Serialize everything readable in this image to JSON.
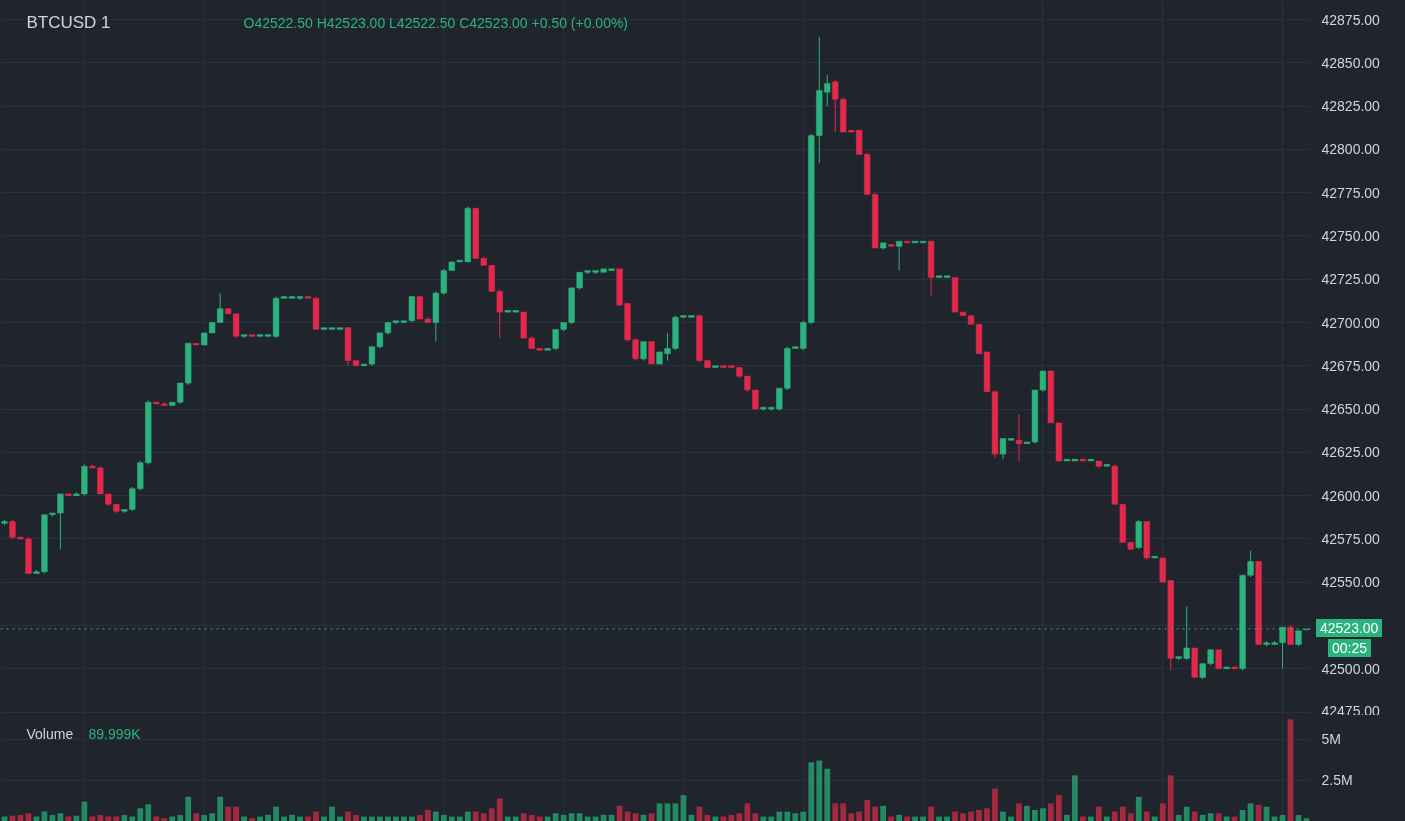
{
  "chart_data": [
    {
      "type": "candlestick",
      "title": "BTCUSD  1",
      "annotations": [
        "O42522.50 H42523.00 L42522.50 C42523.00 +0.50 (+0.00%)",
        "00:25"
      ],
      "categories": [
        null,
        null,
        null,
        null,
        null,
        null,
        null,
        null,
        null,
        null,
        null,
        null,
        null,
        null,
        null,
        null,
        null,
        null,
        null,
        null,
        null,
        null,
        null,
        null,
        null,
        null,
        null,
        null,
        null,
        null,
        null,
        null,
        null,
        null,
        null,
        null,
        null,
        null,
        null,
        null,
        null,
        null,
        null,
        null,
        null,
        null,
        null,
        null,
        null,
        null,
        null,
        null,
        null,
        null,
        null,
        null,
        null,
        null,
        null,
        null,
        null,
        null,
        null,
        null,
        null,
        null,
        null,
        null,
        null,
        null,
        null,
        null,
        null,
        null,
        null,
        null,
        null,
        null,
        null,
        null,
        null,
        null,
        null,
        null,
        null,
        null,
        null,
        null,
        null,
        null,
        null,
        null,
        null,
        null,
        null,
        null,
        null,
        null,
        null,
        null,
        null,
        null,
        null,
        null,
        null,
        null,
        null,
        null,
        null,
        null,
        null,
        null,
        null,
        null,
        null,
        null,
        null,
        null,
        null,
        null,
        null,
        null,
        null,
        null,
        null,
        null,
        null,
        null,
        null,
        null,
        null,
        null,
        null,
        null,
        null,
        null,
        null,
        null,
        null,
        null,
        null,
        null,
        null,
        null,
        null,
        null,
        null,
        null,
        null,
        null,
        null,
        null,
        null,
        null,
        null,
        null,
        null,
        null,
        null,
        null,
        null,
        null,
        null,
        null
      ],
      "ohlc": [
        [
          42584,
          42586,
          42583,
          42585
        ],
        [
          42585,
          42586,
          42575,
          42576
        ],
        [
          42576,
          42576,
          42575,
          42575
        ],
        [
          42575,
          42576,
          42555,
          42555
        ],
        [
          42555,
          42557,
          42555,
          42556
        ],
        [
          42556,
          42589,
          42555,
          42589
        ],
        [
          42589,
          42590,
          42588,
          42590
        ],
        [
          42590,
          42601,
          42569,
          42601
        ],
        [
          42601,
          42601,
          42600,
          42600
        ],
        [
          42600,
          42602,
          42600,
          42601
        ],
        [
          42601,
          42618,
          42600,
          42617
        ],
        [
          42617,
          42618,
          42616,
          42616
        ],
        [
          42616,
          42617,
          42601,
          42601
        ],
        [
          42601,
          42601,
          42594,
          42595
        ],
        [
          42595,
          42595,
          42590,
          42591
        ],
        [
          42591,
          42592,
          42590,
          42592
        ],
        [
          42592,
          42605,
          42591,
          42604
        ],
        [
          42604,
          42620,
          42603,
          42619
        ],
        [
          42619,
          42655,
          42618,
          42654
        ],
        [
          42654,
          42654,
          42653,
          42653
        ],
        [
          42653,
          42654,
          42652,
          42652
        ],
        [
          42652,
          42654,
          42652,
          42654
        ],
        [
          42654,
          42665,
          42653,
          42665
        ],
        [
          42665,
          42688,
          42664,
          42688
        ],
        [
          42688,
          42688,
          42687,
          42687
        ],
        [
          42687,
          42694,
          42687,
          42694
        ],
        [
          42694,
          42700,
          42694,
          42700
        ],
        [
          42700,
          42717,
          42700,
          42708
        ],
        [
          42708,
          42708,
          42705,
          42705
        ],
        [
          42705,
          42705,
          42691,
          42692
        ],
        [
          42692,
          42693,
          42691,
          42693
        ],
        [
          42693,
          42693,
          42692,
          42692
        ],
        [
          42692,
          42693,
          42692,
          42693
        ],
        [
          42692,
          42693,
          42692,
          42693
        ],
        [
          42692,
          42715,
          42691,
          42714
        ],
        [
          42714,
          42715,
          42714,
          42715
        ],
        [
          42714,
          42715,
          42714,
          42715
        ],
        [
          42714,
          42715,
          42713,
          42715
        ],
        [
          42715,
          42715,
          42714,
          42714
        ],
        [
          42714,
          42715,
          42696,
          42696
        ],
        [
          42696,
          42697,
          42696,
          42697
        ],
        [
          42696,
          42697,
          42696,
          42697
        ],
        [
          42696,
          42697,
          42696,
          42697
        ],
        [
          42697,
          42697,
          42675,
          42678
        ],
        [
          42678,
          42678,
          42675,
          42675
        ],
        [
          42675,
          42676,
          42675,
          42676
        ],
        [
          42676,
          42686,
          42675,
          42686
        ],
        [
          42686,
          42694,
          42685,
          42694
        ],
        [
          42694,
          42700,
          42693,
          42700
        ],
        [
          42700,
          42701,
          42699,
          42701
        ],
        [
          42700,
          42701,
          42700,
          42701
        ],
        [
          42701,
          42715,
          42700,
          42715
        ],
        [
          42715,
          42715,
          42702,
          42702
        ],
        [
          42702,
          42703,
          42700,
          42700
        ],
        [
          42700,
          42718,
          42689,
          42717
        ],
        [
          42717,
          42731,
          42716,
          42730
        ],
        [
          42730,
          42735,
          42730,
          42735
        ],
        [
          42735,
          42736,
          42735,
          42736
        ],
        [
          42735,
          42767,
          42735,
          42766
        ],
        [
          42766,
          42766,
          42737,
          42737
        ],
        [
          42737,
          42738,
          42733,
          42733
        ],
        [
          42733,
          42733,
          42718,
          42718
        ],
        [
          42718,
          42719,
          42691,
          42706
        ],
        [
          42706,
          42707,
          42706,
          42707
        ],
        [
          42706,
          42707,
          42706,
          42707
        ],
        [
          42706,
          42706,
          42691,
          42691
        ],
        [
          42691,
          42692,
          42685,
          42685
        ],
        [
          42685,
          42685,
          42684,
          42684
        ],
        [
          42684,
          42685,
          42684,
          42685
        ],
        [
          42685,
          42696,
          42684,
          42696
        ],
        [
          42696,
          42700,
          42695,
          42700
        ],
        [
          42700,
          42720,
          42699,
          42720
        ],
        [
          42720,
          42729,
          42719,
          42729
        ],
        [
          42729,
          42730,
          42728,
          42730
        ],
        [
          42729,
          42730,
          42728,
          42730
        ],
        [
          42729,
          42731,
          42729,
          42731
        ],
        [
          42730,
          42731,
          42730,
          42731
        ],
        [
          42731,
          42731,
          42710,
          42710
        ],
        [
          42711,
          42711,
          42689,
          42690
        ],
        [
          42690,
          42691,
          42678,
          42679
        ],
        [
          42679,
          42689,
          42678,
          42689
        ],
        [
          42689,
          42689,
          42676,
          42676
        ],
        [
          42676,
          42683,
          42676,
          42683
        ],
        [
          42682,
          42694,
          42678,
          42685
        ],
        [
          42685,
          42704,
          42684,
          42703
        ],
        [
          42703,
          42704,
          42703,
          42704
        ],
        [
          42703,
          42704,
          42703,
          42704
        ],
        [
          42704,
          42704,
          42677,
          42678
        ],
        [
          42678,
          42678,
          42674,
          42674
        ],
        [
          42674,
          42675,
          42674,
          42675
        ],
        [
          42675,
          42675,
          42674,
          42674
        ],
        [
          42675,
          42675,
          42674,
          42674
        ],
        [
          42674,
          42674,
          42668,
          42669
        ],
        [
          42669,
          42669,
          42660,
          42661
        ],
        [
          42661,
          42661,
          42650,
          42650
        ],
        [
          42650,
          42651,
          42649,
          42651
        ],
        [
          42650,
          42651,
          42649,
          42651
        ],
        [
          42650,
          42662,
          42649,
          42662
        ],
        [
          42662,
          42686,
          42661,
          42685
        ],
        [
          42685,
          42686,
          42685,
          42686
        ],
        [
          42685,
          42701,
          42684,
          42700
        ],
        [
          42700,
          42809,
          42699,
          42808
        ],
        [
          42808,
          42865,
          42792,
          42834
        ],
        [
          42833,
          42843,
          42825,
          42838
        ],
        [
          42839,
          42840,
          42810,
          42829
        ],
        [
          42829,
          42830,
          42810,
          42810
        ],
        [
          42811,
          42811,
          42810,
          42810
        ],
        [
          42811,
          42811,
          42797,
          42797
        ],
        [
          42797,
          42798,
          42774,
          42774
        ],
        [
          42774,
          42775,
          42743,
          42743
        ],
        [
          42743,
          42746,
          42742,
          42746
        ],
        [
          42745,
          42745,
          42744,
          42744
        ],
        [
          42744,
          42747,
          42730,
          42747
        ],
        [
          42747,
          42747,
          42746,
          42746
        ],
        [
          42746,
          42747,
          42746,
          42747
        ],
        [
          42746,
          42747,
          42746,
          42747
        ],
        [
          42747,
          42747,
          42715,
          42726
        ],
        [
          42726,
          42727,
          42726,
          42727
        ],
        [
          42726,
          42727,
          42726,
          42727
        ],
        [
          42726,
          42726,
          42706,
          42706
        ],
        [
          42706,
          42706,
          42704,
          42704
        ],
        [
          42704,
          42704,
          42699,
          42699
        ],
        [
          42699,
          42699,
          42682,
          42682
        ],
        [
          42683,
          42683,
          42660,
          42660
        ],
        [
          42660,
          42661,
          42622,
          42624
        ],
        [
          42624,
          42633,
          42621,
          42633
        ],
        [
          42632,
          42633,
          42632,
          42633
        ],
        [
          42632,
          42647,
          42620,
          42630
        ],
        [
          42630,
          42631,
          42630,
          42631
        ],
        [
          42631,
          42661,
          42630,
          42661
        ],
        [
          42661,
          42672,
          42660,
          42672
        ],
        [
          42672,
          42672,
          42642,
          42642
        ],
        [
          42642,
          42642,
          42620,
          42620
        ],
        [
          42620,
          42621,
          42620,
          42621
        ],
        [
          42620,
          42621,
          42620,
          42621
        ],
        [
          42621,
          42621,
          42620,
          42620
        ],
        [
          42620,
          42621,
          42620,
          42621
        ],
        [
          42620,
          42620,
          42616,
          42617
        ],
        [
          42617,
          42618,
          42617,
          42618
        ],
        [
          42617,
          42618,
          42595,
          42595
        ],
        [
          42595,
          42595,
          42573,
          42573
        ],
        [
          42573,
          42573,
          42569,
          42569
        ],
        [
          42570,
          42586,
          42569,
          42585
        ],
        [
          42585,
          42585,
          42563,
          42564
        ],
        [
          42564,
          42565,
          42564,
          42565
        ],
        [
          42564,
          42564,
          42550,
          42550
        ],
        [
          42551,
          42551,
          42499,
          42506
        ],
        [
          42506,
          42507,
          42505,
          42507
        ],
        [
          42506,
          42536,
          42505,
          42512
        ],
        [
          42512,
          42512,
          42495,
          42495
        ],
        [
          42495,
          42503,
          42494,
          42503
        ],
        [
          42503,
          42511,
          42502,
          42511
        ],
        [
          42511,
          42511,
          42500,
          42500
        ],
        [
          42500,
          42501,
          42500,
          42501
        ],
        [
          42501,
          42501,
          42500,
          42500
        ],
        [
          42500,
          42554,
          42499,
          42554
        ],
        [
          42554,
          42568,
          42553,
          42562
        ],
        [
          42562,
          42562,
          42514,
          42514
        ],
        [
          42514,
          42516,
          42513,
          42515
        ],
        [
          42514,
          42516,
          42514,
          42515
        ],
        [
          42515,
          42524,
          42500,
          42524
        ],
        [
          42524,
          42525,
          42514,
          42514
        ],
        [
          42514,
          42522,
          42513,
          42522
        ],
        [
          42522.5,
          42523,
          42522.5,
          42523
        ]
      ],
      "colors": [
        "#2bb37d",
        "#e3294b",
        "#e3294b",
        "#e3294b",
        "#2bb37d",
        "#2bb37d",
        "#2bb37d",
        "#2bb37d",
        "#e3294b",
        "#2bb37d",
        "#2bb37d",
        "#e3294b",
        "#e3294b",
        "#e3294b",
        "#e3294b",
        "#2bb37d",
        "#2bb37d",
        "#2bb37d",
        "#2bb37d",
        "#e3294b",
        "#e3294b",
        "#2bb37d",
        "#2bb37d",
        "#2bb37d",
        "#e3294b",
        "#2bb37d",
        "#2bb37d",
        "#2bb37d",
        "#e3294b",
        "#e3294b",
        "#2bb37d",
        "#e3294b",
        "#2bb37d",
        "#2bb37d",
        "#2bb37d",
        "#2bb37d",
        "#2bb37d",
        "#2bb37d",
        "#e3294b",
        "#e3294b",
        "#2bb37d",
        "#2bb37d",
        "#2bb37d",
        "#e3294b",
        "#e3294b",
        "#2bb37d",
        "#2bb37d",
        "#2bb37d",
        "#2bb37d",
        "#2bb37d",
        "#2bb37d",
        "#2bb37d",
        "#e3294b",
        "#e3294b",
        "#2bb37d",
        "#2bb37d",
        "#2bb37d",
        "#2bb37d",
        "#2bb37d",
        "#e3294b",
        "#e3294b",
        "#e3294b",
        "#e3294b",
        "#2bb37d",
        "#2bb37d",
        "#e3294b",
        "#e3294b",
        "#e3294b",
        "#2bb37d",
        "#2bb37d",
        "#2bb37d",
        "#2bb37d",
        "#2bb37d",
        "#2bb37d",
        "#2bb37d",
        "#2bb37d",
        "#2bb37d",
        "#e3294b",
        "#e3294b",
        "#e3294b",
        "#2bb37d",
        "#e3294b",
        "#2bb37d",
        "#2bb37d",
        "#2bb37d",
        "#2bb37d",
        "#2bb37d",
        "#e3294b",
        "#e3294b",
        "#2bb37d",
        "#e3294b",
        "#e3294b",
        "#e3294b",
        "#e3294b",
        "#e3294b",
        "#2bb37d",
        "#2bb37d",
        "#2bb37d",
        "#2bb37d",
        "#2bb37d",
        "#2bb37d",
        "#2bb37d",
        "#2bb37d",
        "#2bb37d",
        "#e3294b",
        "#e3294b",
        "#e3294b",
        "#e3294b",
        "#e3294b",
        "#e3294b",
        "#2bb37d",
        "#e3294b",
        "#2bb37d",
        "#e3294b",
        "#2bb37d",
        "#2bb37d",
        "#e3294b",
        "#2bb37d",
        "#2bb37d",
        "#e3294b",
        "#e3294b",
        "#e3294b",
        "#e3294b",
        "#e3294b",
        "#e3294b",
        "#2bb37d",
        "#2bb37d",
        "#e3294b",
        "#2bb37d",
        "#2bb37d",
        "#2bb37d",
        "#e3294b",
        "#e3294b",
        "#2bb37d",
        "#2bb37d",
        "#e3294b",
        "#2bb37d",
        "#e3294b",
        "#2bb37d",
        "#e3294b",
        "#e3294b",
        "#e3294b",
        "#2bb37d",
        "#e3294b",
        "#2bb37d",
        "#e3294b",
        "#e3294b",
        "#2bb37d",
        "#2bb37d",
        "#e3294b",
        "#2bb37d",
        "#2bb37d",
        "#e3294b",
        "#2bb37d",
        "#e3294b",
        "#2bb37d",
        "#2bb37d",
        "#e3294b",
        "#2bb37d",
        "#2bb37d",
        "#2bb37d",
        "#e3294b",
        "#2bb37d",
        "#2bb37d"
      ],
      "ylim": [
        42473,
        42886
      ],
      "yticks": [
        {
          "value": 42475,
          "label": "42475.00"
        },
        {
          "value": 42500,
          "label": "42500.00"
        },
        {
          "value": 42525,
          "label": null
        },
        {
          "value": 42550,
          "label": "42550.00"
        },
        {
          "value": 42575,
          "label": "42575.00"
        },
        {
          "value": 42600,
          "label": "42600.00"
        },
        {
          "value": 42625,
          "label": "42625.00"
        },
        {
          "value": 42650,
          "label": "42650.00"
        },
        {
          "value": 42675,
          "label": "42675.00"
        },
        {
          "value": 42700,
          "label": "42700.00"
        },
        {
          "value": 42725,
          "label": "42725.00"
        },
        {
          "value": 42750,
          "label": "42750.00"
        },
        {
          "value": 42775,
          "label": "42775.00"
        },
        {
          "value": 42800,
          "label": "42800.00"
        },
        {
          "value": 42825,
          "label": "42825.00"
        },
        {
          "value": 42850,
          "label": "42850.00"
        },
        {
          "value": 42875,
          "label": "42875.00"
        }
      ],
      "ref_lines": [
        {
          "axis": "y",
          "value": 42523,
          "label": "42523.00",
          "color": "#2bb37d",
          "line_style": "dotted"
        }
      ],
      "grid": true,
      "tick_labels": "y"
    },
    {
      "type": "bar",
      "title": "Volume",
      "annotations": [
        "89.999K"
      ],
      "categories": [
        null,
        null,
        null,
        null,
        null,
        null,
        null,
        null,
        null,
        null,
        null,
        null,
        null,
        null,
        null,
        null,
        null,
        null,
        null,
        null,
        null,
        null,
        null,
        null,
        null,
        null,
        null,
        null,
        null,
        null,
        null,
        null,
        null,
        null,
        null,
        null,
        null,
        null,
        null,
        null,
        null,
        null,
        null,
        null,
        null,
        null,
        null,
        null,
        null,
        null,
        null,
        null,
        null,
        null,
        null,
        null,
        null,
        null,
        null,
        null,
        null,
        null,
        null,
        null,
        null,
        null,
        null,
        null,
        null,
        null,
        null,
        null,
        null,
        null,
        null,
        null,
        null,
        null,
        null,
        null,
        null,
        null,
        null,
        null,
        null,
        null,
        null,
        null,
        null,
        null,
        null,
        null,
        null,
        null,
        null,
        null,
        null,
        null,
        null,
        null,
        null,
        null,
        null,
        null,
        null,
        null,
        null,
        null,
        null,
        null,
        null,
        null,
        null,
        null,
        null,
        null,
        null,
        null,
        null,
        null,
        null,
        null,
        null,
        null,
        null,
        null,
        null,
        null,
        null,
        null,
        null,
        null,
        null,
        null,
        null,
        null,
        null,
        null,
        null,
        null,
        null,
        null,
        null,
        null,
        null,
        null,
        null,
        null,
        null,
        null,
        null,
        null,
        null,
        null,
        null,
        null,
        null,
        null,
        null,
        null,
        null,
        null,
        null,
        null
      ],
      "values": [
        0.3,
        0.35,
        0.4,
        0.5,
        0.3,
        0.6,
        0.4,
        0.5,
        0.3,
        0.35,
        1.2,
        0.3,
        0.4,
        0.3,
        0.3,
        0.4,
        0.3,
        0.8,
        1.05,
        0.3,
        0.2,
        0.3,
        0.4,
        1.5,
        0.5,
        0.4,
        0.5,
        1.5,
        0.9,
        0.9,
        0.3,
        0.2,
        0.3,
        0.4,
        0.9,
        0.3,
        0.4,
        0.3,
        0.3,
        0.6,
        0.3,
        0.9,
        0.3,
        0.6,
        0.4,
        0.3,
        0.3,
        0.3,
        0.3,
        0.3,
        0.3,
        0.3,
        0.4,
        0.7,
        0.6,
        0.4,
        0.3,
        0.3,
        0.6,
        0.6,
        0.5,
        0.8,
        1.4,
        0.3,
        0.3,
        0.5,
        0.4,
        0.3,
        0.3,
        0.5,
        0.4,
        0.5,
        0.5,
        0.3,
        0.3,
        0.4,
        0.4,
        0.95,
        0.6,
        0.5,
        0.4,
        0.5,
        1.1,
        1.1,
        1.1,
        1.6,
        0.4,
        0.9,
        0.4,
        0.3,
        0.3,
        0.4,
        0.5,
        1.1,
        0.5,
        0.3,
        0.3,
        0.6,
        0.6,
        0.5,
        0.6,
        3.6,
        3.7,
        3.2,
        1.1,
        1.1,
        0.5,
        0.6,
        1.3,
        0.9,
        0.95,
        0.3,
        0.4,
        0.3,
        0.3,
        0.3,
        0.9,
        0.3,
        0.3,
        0.6,
        0.5,
        0.6,
        0.7,
        0.8,
        2.0,
        0.6,
        0.3,
        1.1,
        0.95,
        0.7,
        0.8,
        1.1,
        1.6,
        0.4,
        2.8,
        0.3,
        0.3,
        0.9,
        0.3,
        0.6,
        0.9,
        0.5,
        1.5,
        0.6,
        0.3,
        1.1,
        2.8,
        0.4,
        0.9,
        0.6,
        0.4,
        0.5,
        0.5,
        0.3,
        0.3,
        0.7,
        1.1,
        1.0,
        0.9,
        0.3,
        0.4,
        6.2,
        0.4,
        0.2
      ],
      "colors": [
        "#238a63",
        "#a3293f",
        "#a3293f",
        "#a3293f",
        "#238a63",
        "#238a63",
        "#238a63",
        "#238a63",
        "#a3293f",
        "#238a63",
        "#238a63",
        "#a3293f",
        "#a3293f",
        "#a3293f",
        "#a3293f",
        "#238a63",
        "#238a63",
        "#238a63",
        "#238a63",
        "#a3293f",
        "#a3293f",
        "#238a63",
        "#238a63",
        "#238a63",
        "#a3293f",
        "#238a63",
        "#238a63",
        "#238a63",
        "#a3293f",
        "#a3293f",
        "#238a63",
        "#a3293f",
        "#238a63",
        "#238a63",
        "#238a63",
        "#238a63",
        "#238a63",
        "#238a63",
        "#a3293f",
        "#a3293f",
        "#238a63",
        "#238a63",
        "#238a63",
        "#a3293f",
        "#a3293f",
        "#238a63",
        "#238a63",
        "#238a63",
        "#238a63",
        "#238a63",
        "#238a63",
        "#238a63",
        "#a3293f",
        "#a3293f",
        "#238a63",
        "#238a63",
        "#238a63",
        "#238a63",
        "#238a63",
        "#a3293f",
        "#a3293f",
        "#a3293f",
        "#a3293f",
        "#238a63",
        "#238a63",
        "#a3293f",
        "#a3293f",
        "#a3293f",
        "#238a63",
        "#238a63",
        "#238a63",
        "#238a63",
        "#238a63",
        "#238a63",
        "#238a63",
        "#238a63",
        "#238a63",
        "#a3293f",
        "#a3293f",
        "#a3293f",
        "#238a63",
        "#a3293f",
        "#238a63",
        "#238a63",
        "#238a63",
        "#238a63",
        "#238a63",
        "#a3293f",
        "#a3293f",
        "#238a63",
        "#a3293f",
        "#a3293f",
        "#a3293f",
        "#a3293f",
        "#a3293f",
        "#238a63",
        "#238a63",
        "#238a63",
        "#238a63",
        "#238a63",
        "#238a63",
        "#238a63",
        "#238a63",
        "#238a63",
        "#a3293f",
        "#a3293f",
        "#a3293f",
        "#a3293f",
        "#a3293f",
        "#a3293f",
        "#238a63",
        "#a3293f",
        "#238a63",
        "#a3293f",
        "#238a63",
        "#238a63",
        "#a3293f",
        "#238a63",
        "#238a63",
        "#a3293f",
        "#a3293f",
        "#a3293f",
        "#a3293f",
        "#a3293f",
        "#a3293f",
        "#238a63",
        "#238a63",
        "#a3293f",
        "#238a63",
        "#238a63",
        "#238a63",
        "#a3293f",
        "#a3293f",
        "#238a63",
        "#238a63",
        "#a3293f",
        "#238a63",
        "#a3293f",
        "#238a63",
        "#a3293f",
        "#a3293f",
        "#a3293f",
        "#238a63",
        "#a3293f",
        "#238a63",
        "#a3293f",
        "#a3293f",
        "#238a63",
        "#238a63",
        "#a3293f",
        "#238a63",
        "#238a63",
        "#a3293f",
        "#238a63",
        "#a3293f",
        "#238a63",
        "#238a63",
        "#a3293f",
        "#238a63",
        "#238a63",
        "#238a63",
        "#a3293f",
        "#238a63",
        "#238a63"
      ],
      "ylim": [
        0,
        6.43
      ],
      "yticks": [
        {
          "value": 2.5,
          "label": "2.5M"
        },
        {
          "value": 5,
          "label": "5M"
        }
      ],
      "grid": true,
      "tick_labels": "y"
    }
  ]
}
